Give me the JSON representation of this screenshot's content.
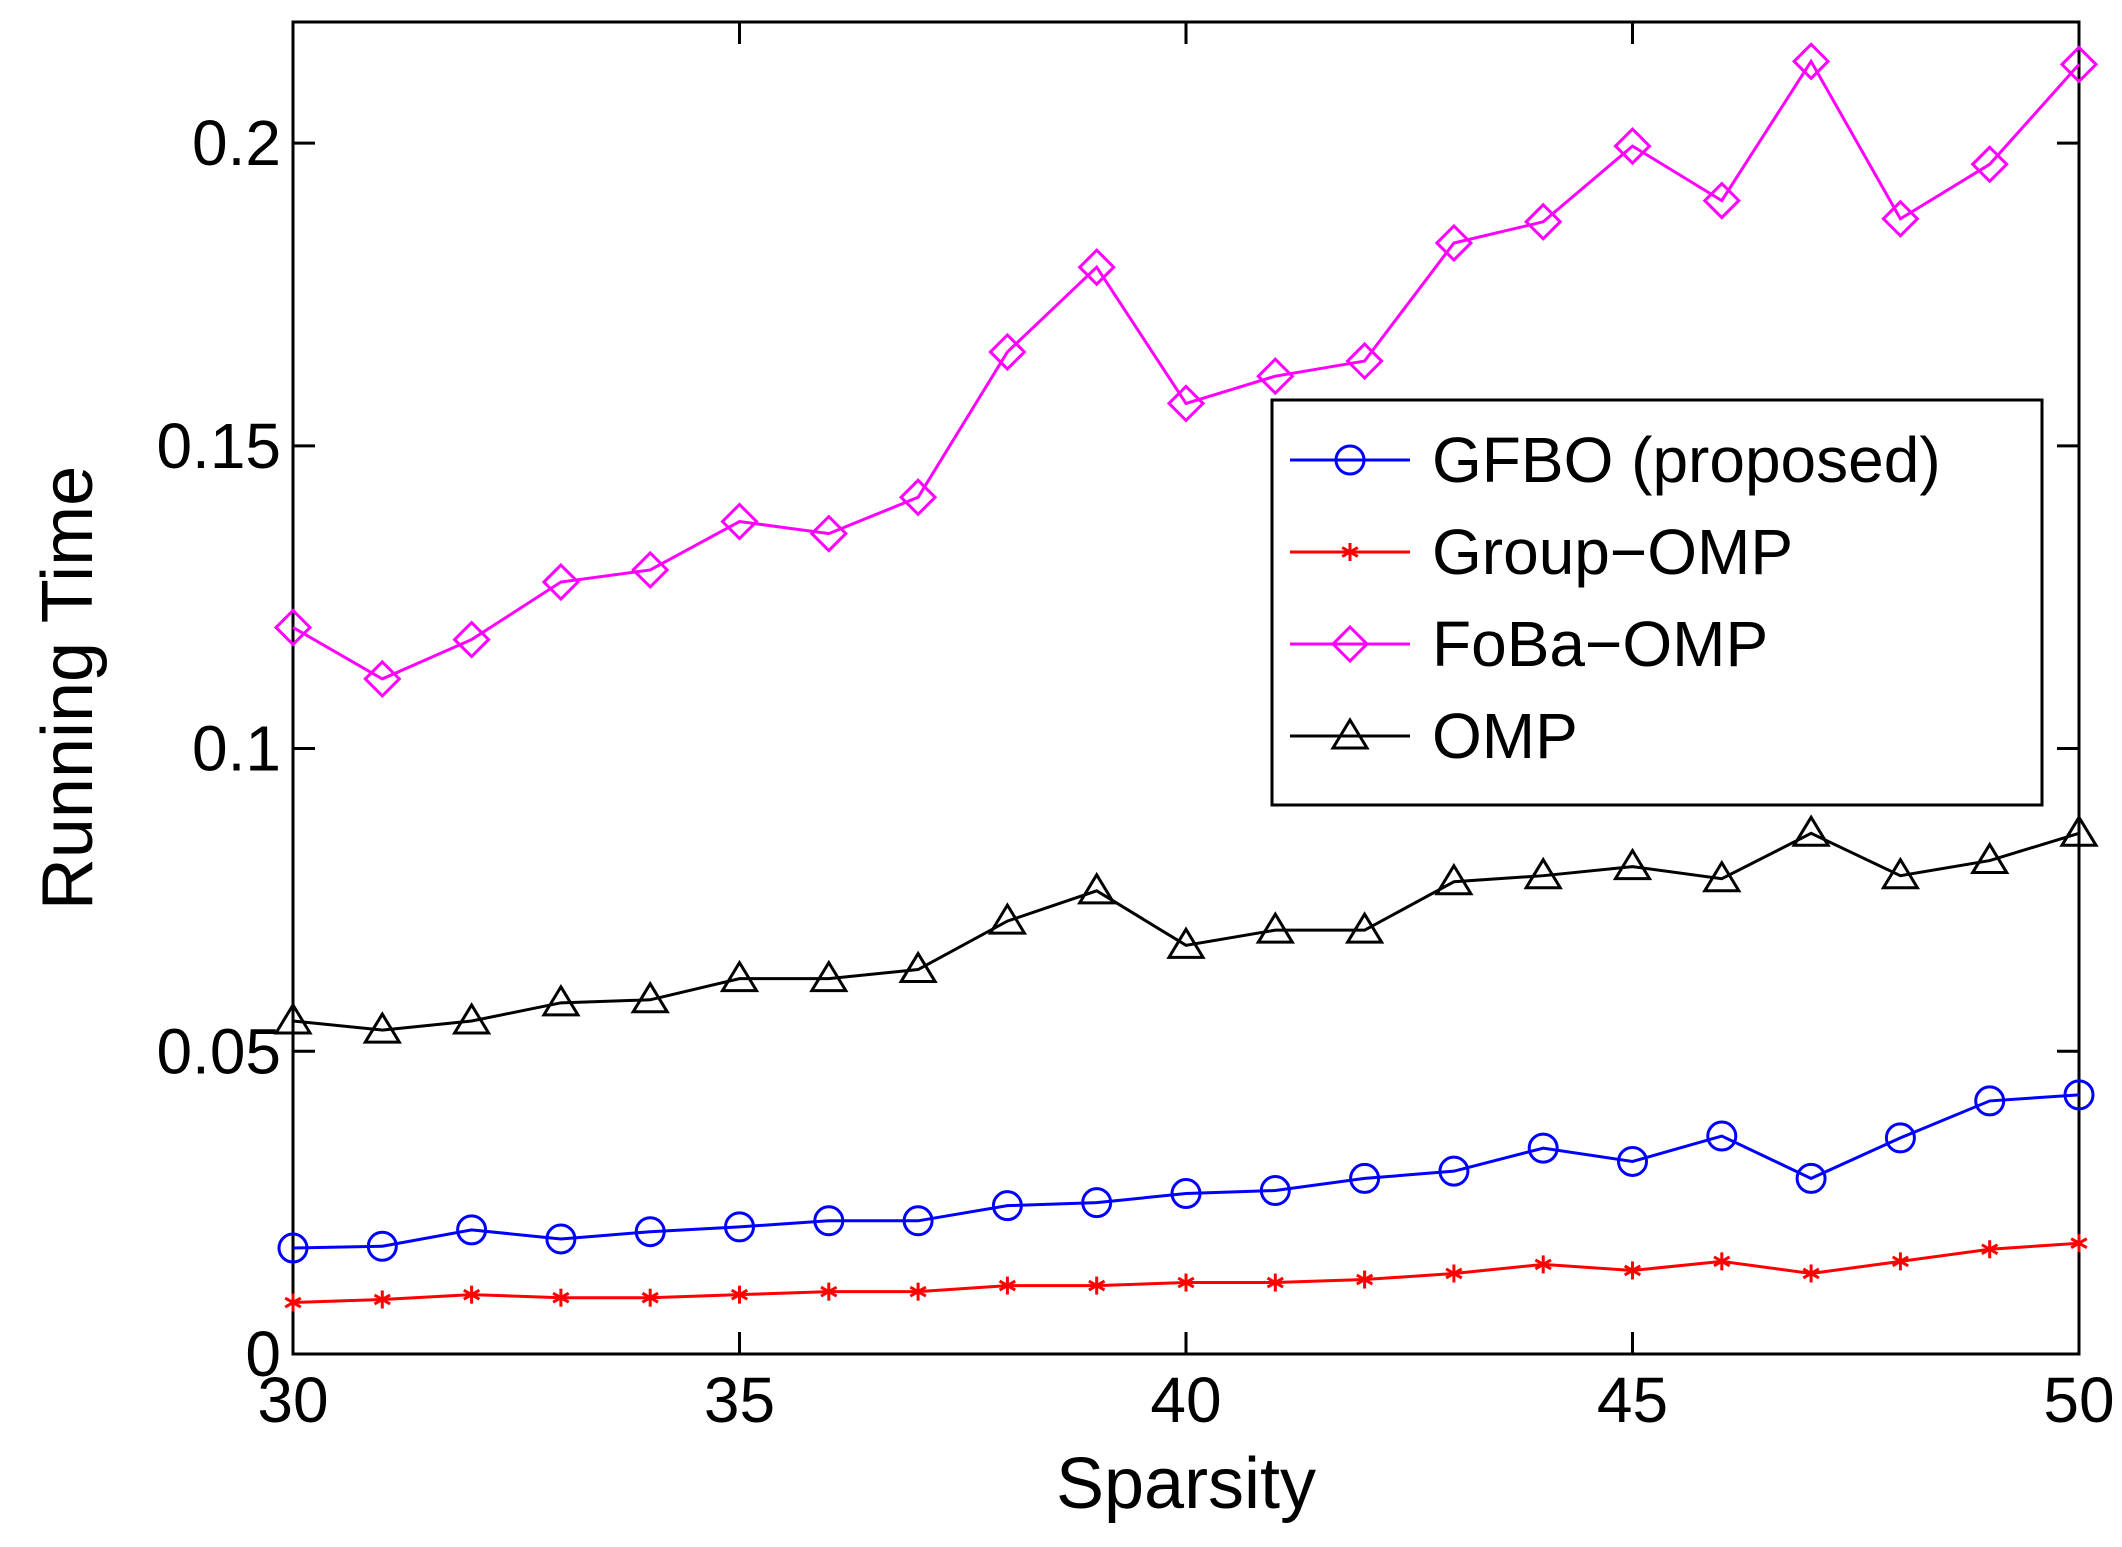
{
  "chart_data": {
    "type": "line",
    "title": "",
    "xlabel": "Sparsity",
    "ylabel": "Running Time",
    "xlim": [
      30,
      50
    ],
    "ylim": [
      0,
      0.22
    ],
    "xticks": [
      30,
      35,
      40,
      45,
      50
    ],
    "xtick_labels": [
      "30",
      "35",
      "40",
      "45",
      "50"
    ],
    "yticks": [
      0,
      0.05,
      0.1,
      0.15,
      0.2
    ],
    "ytick_labels": [
      "0",
      "0.05",
      "0.1",
      "0.15",
      "0.2"
    ],
    "grid": false,
    "legend_position": "center-right",
    "x": [
      30,
      31,
      32,
      33,
      34,
      35,
      36,
      37,
      38,
      39,
      40,
      41,
      42,
      43,
      44,
      45,
      46,
      47,
      48,
      49,
      50
    ],
    "series": [
      {
        "name": "GFBO (proposed)",
        "color": "#0000ff",
        "marker": "circle",
        "values": [
          0.0175,
          0.0178,
          0.0205,
          0.019,
          0.0202,
          0.021,
          0.022,
          0.022,
          0.0245,
          0.025,
          0.0265,
          0.027,
          0.029,
          0.0302,
          0.034,
          0.0318,
          0.036,
          0.029,
          0.0357,
          0.0418,
          0.0428
        ]
      },
      {
        "name": "Group−OMP",
        "color": "#ff0000",
        "marker": "star",
        "values": [
          0.0085,
          0.009,
          0.0098,
          0.0093,
          0.0093,
          0.0098,
          0.0103,
          0.0103,
          0.0113,
          0.0113,
          0.0118,
          0.0118,
          0.0123,
          0.0133,
          0.0148,
          0.0138,
          0.0153,
          0.0133,
          0.0153,
          0.0173,
          0.0183
        ]
      },
      {
        "name": "FoBa−OMP",
        "color": "#ff00ff",
        "marker": "diamond",
        "values": [
          0.12,
          0.1115,
          0.118,
          0.1275,
          0.1295,
          0.1375,
          0.1355,
          0.1415,
          0.1655,
          0.1795,
          0.157,
          0.1615,
          0.164,
          0.1835,
          0.187,
          0.1995,
          0.1905,
          0.2135,
          0.1875,
          0.1965,
          0.213
        ]
      },
      {
        "name": "OMP",
        "color": "#000000",
        "marker": "triangle",
        "values": [
          0.055,
          0.0535,
          0.055,
          0.058,
          0.0585,
          0.062,
          0.062,
          0.0635,
          0.0715,
          0.0765,
          0.0675,
          0.07,
          0.07,
          0.078,
          0.079,
          0.0805,
          0.0785,
          0.086,
          0.079,
          0.0815,
          0.086
        ]
      }
    ]
  }
}
